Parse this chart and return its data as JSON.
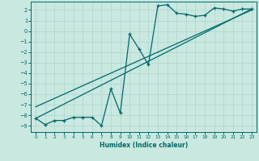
{
  "xlabel": "Humidex (Indice chaleur)",
  "ylabel": "",
  "background_color": "#c8e8e0",
  "grid_color": "#b0d4cc",
  "line_color": "#006868",
  "xlim": [
    -0.5,
    23.5
  ],
  "ylim": [
    -9.6,
    2.8
  ],
  "yticks": [
    2,
    1,
    0,
    -1,
    -2,
    -3,
    -4,
    -5,
    -6,
    -7,
    -8,
    -9
  ],
  "xticks": [
    0,
    1,
    2,
    3,
    4,
    5,
    6,
    7,
    8,
    9,
    10,
    11,
    12,
    13,
    14,
    15,
    16,
    17,
    18,
    19,
    20,
    21,
    22,
    23
  ],
  "curve1_x": [
    0,
    1,
    2,
    3,
    4,
    5,
    6,
    7,
    8,
    9,
    10,
    11,
    12,
    13,
    14,
    15,
    16,
    17,
    18,
    19,
    20,
    21,
    22,
    23
  ],
  "curve1_y": [
    -8.3,
    -8.9,
    -8.5,
    -8.5,
    -8.2,
    -8.2,
    -8.2,
    -9.0,
    -5.5,
    -7.8,
    -0.3,
    -1.7,
    -3.2,
    2.4,
    2.5,
    1.7,
    1.6,
    1.4,
    1.5,
    2.2,
    2.1,
    1.9,
    2.1,
    2.1
  ],
  "line1_x": [
    0,
    23
  ],
  "line1_y": [
    -8.3,
    2.1
  ],
  "line2_x": [
    0,
    23
  ],
  "line2_y": [
    -7.2,
    2.0
  ]
}
